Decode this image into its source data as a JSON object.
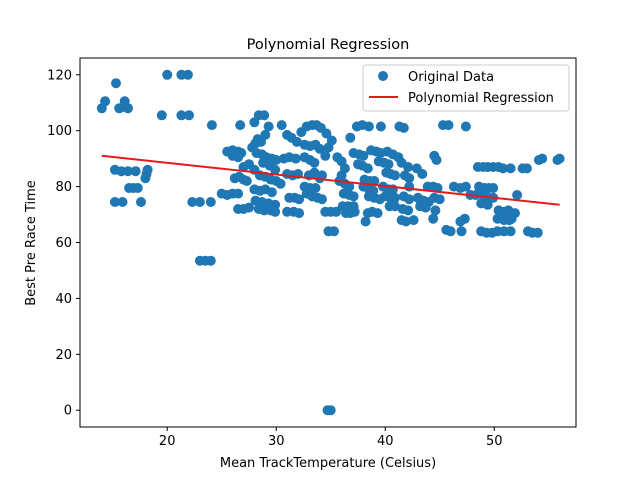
{
  "chart_data": {
    "type": "scatter",
    "title": "Polynomial Regression",
    "xlabel": "Mean TrackTemperature (Celsius)",
    "ylabel": "Best Pre Race Time",
    "xlim": [
      12,
      57.5
    ],
    "ylim": [
      -6,
      126
    ],
    "xticks": [
      20,
      30,
      40,
      50
    ],
    "yticks": [
      0,
      20,
      40,
      60,
      80,
      100,
      120
    ],
    "grid": false,
    "legend_position": "top-right",
    "colors": {
      "points": "#1f77b4",
      "line": "#e41a1c"
    },
    "series": [
      {
        "name": "Original Data",
        "type": "scatter",
        "points": [
          [
            14.0,
            108
          ],
          [
            14.3,
            110.5
          ],
          [
            15.3,
            117
          ],
          [
            15.6,
            108
          ],
          [
            16.0,
            108.5
          ],
          [
            16.1,
            110.5
          ],
          [
            16.4,
            108
          ],
          [
            15.2,
            86
          ],
          [
            15.8,
            85.5
          ],
          [
            16.4,
            85.5
          ],
          [
            17.1,
            85.5
          ],
          [
            16.5,
            79.5
          ],
          [
            16.9,
            79.5
          ],
          [
            17.3,
            79.5
          ],
          [
            15.2,
            74.5
          ],
          [
            15.9,
            74.5
          ],
          [
            17.6,
            74.5
          ],
          [
            18.0,
            83
          ],
          [
            18.1,
            84.5
          ],
          [
            18.2,
            86
          ],
          [
            19.5,
            105.5
          ],
          [
            20.0,
            120
          ],
          [
            21.3,
            120
          ],
          [
            21.9,
            120
          ],
          [
            21.3,
            105.5
          ],
          [
            22.0,
            105.5
          ],
          [
            22.3,
            74.5
          ],
          [
            23.0,
            74.5
          ],
          [
            24.0,
            74.5
          ],
          [
            23.0,
            53.5
          ],
          [
            23.5,
            53.5
          ],
          [
            24.0,
            53.5
          ],
          [
            24.1,
            102
          ],
          [
            25.0,
            77.5
          ],
          [
            25.5,
            77
          ],
          [
            26.0,
            77.5
          ],
          [
            26.5,
            77.5
          ],
          [
            25.5,
            92.5
          ],
          [
            26.0,
            93
          ],
          [
            26.5,
            92.5
          ],
          [
            26.8,
            92
          ],
          [
            26.0,
            91
          ],
          [
            26.5,
            90.5
          ],
          [
            26.2,
            83
          ],
          [
            26.6,
            83.5
          ],
          [
            27.0,
            82.5
          ],
          [
            27.3,
            82
          ],
          [
            26.5,
            72
          ],
          [
            27.0,
            72
          ],
          [
            27.5,
            72.5
          ],
          [
            26.7,
            102
          ],
          [
            27.0,
            87
          ],
          [
            27.5,
            88
          ],
          [
            28.0,
            86
          ],
          [
            27.8,
            94
          ],
          [
            28.1,
            95.5
          ],
          [
            28.3,
            97
          ],
          [
            28.0,
            103
          ],
          [
            28.4,
            105.5
          ],
          [
            28.9,
            105.5
          ],
          [
            29.3,
            101.5
          ],
          [
            29.0,
            98.5
          ],
          [
            28.6,
            96
          ],
          [
            28.2,
            92
          ],
          [
            28.7,
            91.5
          ],
          [
            29.1,
            90.5
          ],
          [
            29.6,
            90
          ],
          [
            30.0,
            89.5
          ],
          [
            28.8,
            88.5
          ],
          [
            29.4,
            87.5
          ],
          [
            29.9,
            86
          ],
          [
            28.5,
            84
          ],
          [
            29.0,
            83.5
          ],
          [
            29.5,
            82.5
          ],
          [
            30.0,
            82
          ],
          [
            30.4,
            81
          ],
          [
            28.0,
            79
          ],
          [
            28.5,
            78.5
          ],
          [
            29.0,
            79
          ],
          [
            29.6,
            78
          ],
          [
            28.1,
            75
          ],
          [
            28.7,
            74.5
          ],
          [
            29.3,
            74
          ],
          [
            29.9,
            73.5
          ],
          [
            28.4,
            72
          ],
          [
            28.9,
            71.5
          ],
          [
            29.5,
            71.5
          ],
          [
            29.9,
            71
          ],
          [
            30.5,
            102
          ],
          [
            31.0,
            98.5
          ],
          [
            31.4,
            97.5
          ],
          [
            31.9,
            96
          ],
          [
            30.7,
            90
          ],
          [
            31.2,
            90.5
          ],
          [
            31.8,
            90
          ],
          [
            31.0,
            84.5
          ],
          [
            31.5,
            84
          ],
          [
            32.0,
            84.5
          ],
          [
            31.2,
            76
          ],
          [
            31.7,
            76
          ],
          [
            32.1,
            75.5
          ],
          [
            31.0,
            71
          ],
          [
            31.6,
            71
          ],
          [
            32.1,
            70.5
          ],
          [
            32.3,
            99.5
          ],
          [
            32.8,
            101.5
          ],
          [
            33.3,
            102
          ],
          [
            33.7,
            102
          ],
          [
            34.1,
            101
          ],
          [
            32.6,
            95
          ],
          [
            33.1,
            94.5
          ],
          [
            33.6,
            95
          ],
          [
            34.0,
            93.5
          ],
          [
            32.6,
            90.5
          ],
          [
            33.1,
            89.5
          ],
          [
            33.5,
            88.5
          ],
          [
            33.0,
            84
          ],
          [
            33.5,
            85
          ],
          [
            34.0,
            83
          ],
          [
            32.6,
            80
          ],
          [
            33.1,
            79.5
          ],
          [
            33.6,
            79.5
          ],
          [
            32.8,
            77.5
          ],
          [
            33.3,
            76.5
          ],
          [
            33.8,
            76
          ],
          [
            34.2,
            75.5
          ],
          [
            34.2,
            84
          ],
          [
            34.5,
            91
          ],
          [
            34.8,
            94
          ],
          [
            35.1,
            96.5
          ],
          [
            34.6,
            99
          ],
          [
            34.5,
            71
          ],
          [
            35.0,
            71
          ],
          [
            35.5,
            71
          ],
          [
            34.8,
            64
          ],
          [
            35.3,
            64
          ],
          [
            34.7,
            0
          ],
          [
            35.0,
            0
          ],
          [
            35.6,
            90.5
          ],
          [
            36.0,
            89
          ],
          [
            36.3,
            86.5
          ],
          [
            36.0,
            84
          ],
          [
            35.8,
            82
          ],
          [
            36.3,
            81
          ],
          [
            36.7,
            80
          ],
          [
            36.2,
            77.5
          ],
          [
            36.7,
            77
          ],
          [
            37.1,
            76.5
          ],
          [
            36.1,
            73
          ],
          [
            36.6,
            73
          ],
          [
            37.1,
            73
          ],
          [
            36.4,
            70.5
          ],
          [
            36.8,
            70.5
          ],
          [
            37.2,
            71
          ],
          [
            36.8,
            97.5
          ],
          [
            37.4,
            101.5
          ],
          [
            37.9,
            102
          ],
          [
            37.1,
            92
          ],
          [
            37.6,
            91.5
          ],
          [
            38.0,
            91
          ],
          [
            37.5,
            88
          ],
          [
            37.9,
            87.5
          ],
          [
            38.4,
            86.5
          ],
          [
            38.1,
            82.5
          ],
          [
            38.6,
            82
          ],
          [
            39.0,
            82
          ],
          [
            38.0,
            80
          ],
          [
            38.5,
            79
          ],
          [
            38.9,
            78.5
          ],
          [
            38.5,
            76.5
          ],
          [
            39.0,
            76
          ],
          [
            39.5,
            75.5
          ],
          [
            38.4,
            70.5
          ],
          [
            38.8,
            71
          ],
          [
            39.3,
            70.5
          ],
          [
            38.2,
            67.5
          ],
          [
            38.5,
            101.5
          ],
          [
            39.6,
            101.5
          ],
          [
            38.7,
            93
          ],
          [
            39.2,
            92.5
          ],
          [
            39.6,
            92
          ],
          [
            39.4,
            89
          ],
          [
            39.9,
            88.5
          ],
          [
            40.3,
            88
          ],
          [
            40.1,
            85
          ],
          [
            40.5,
            84.5
          ],
          [
            40.9,
            84
          ],
          [
            39.8,
            80
          ],
          [
            40.3,
            79
          ],
          [
            40.7,
            79
          ],
          [
            40.0,
            76.5
          ],
          [
            40.5,
            76
          ],
          [
            40.9,
            76
          ],
          [
            40.4,
            73
          ],
          [
            40.9,
            73
          ],
          [
            40.2,
            92.5
          ],
          [
            40.7,
            91.5
          ],
          [
            41.2,
            90.5
          ],
          [
            41.3,
            101.5
          ],
          [
            41.7,
            101
          ],
          [
            41.5,
            88.5
          ],
          [
            41.8,
            84
          ],
          [
            42.2,
            83
          ],
          [
            42.2,
            80
          ],
          [
            41.7,
            76.5
          ],
          [
            42.2,
            75.5
          ],
          [
            41.6,
            72
          ],
          [
            42.1,
            71.5
          ],
          [
            41.5,
            68
          ],
          [
            41.9,
            67.5
          ],
          [
            42.6,
            68
          ],
          [
            42.1,
            87
          ],
          [
            42.9,
            86.5
          ],
          [
            43.4,
            84.5
          ],
          [
            43.0,
            76
          ],
          [
            43.5,
            75
          ],
          [
            44.0,
            74.5
          ],
          [
            43.2,
            73
          ],
          [
            43.7,
            72.5
          ],
          [
            43.9,
            80
          ],
          [
            44.4,
            80
          ],
          [
            44.8,
            79.5
          ],
          [
            44.5,
            76
          ],
          [
            45.0,
            75.5
          ],
          [
            44.6,
            71.5
          ],
          [
            44.4,
            68.5
          ],
          [
            44.5,
            91
          ],
          [
            44.7,
            89.5
          ],
          [
            45.3,
            102
          ],
          [
            45.8,
            102
          ],
          [
            45.6,
            64.5
          ],
          [
            46.0,
            64
          ],
          [
            46.9,
            67.5
          ],
          [
            47.3,
            68.5
          ],
          [
            47.0,
            64
          ],
          [
            47.4,
            101.5
          ],
          [
            46.3,
            80
          ],
          [
            46.9,
            79.5
          ],
          [
            47.4,
            80
          ],
          [
            47.8,
            77
          ],
          [
            48.3,
            77
          ],
          [
            48.5,
            87
          ],
          [
            49.0,
            87
          ],
          [
            49.4,
            87
          ],
          [
            49.9,
            87
          ],
          [
            50.4,
            87
          ],
          [
            50.8,
            86.5
          ],
          [
            48.6,
            80
          ],
          [
            49.1,
            79.5
          ],
          [
            49.5,
            79.5
          ],
          [
            49.9,
            79.5
          ],
          [
            48.8,
            77.5
          ],
          [
            49.3,
            76.5
          ],
          [
            49.9,
            76
          ],
          [
            48.8,
            74
          ],
          [
            49.4,
            73.5
          ],
          [
            48.8,
            64
          ],
          [
            49.3,
            63.5
          ],
          [
            49.8,
            63.5
          ],
          [
            50.4,
            71.5
          ],
          [
            50.9,
            71
          ],
          [
            51.3,
            71.5
          ],
          [
            50.3,
            68.5
          ],
          [
            50.9,
            68
          ],
          [
            51.4,
            68
          ],
          [
            50.3,
            64
          ],
          [
            50.9,
            64
          ],
          [
            51.5,
            64
          ],
          [
            51.6,
            68.5
          ],
          [
            51.9,
            70.5
          ],
          [
            51.5,
            86.5
          ],
          [
            52.1,
            77
          ],
          [
            52.6,
            86.5
          ],
          [
            53.0,
            86.5
          ],
          [
            53.1,
            64
          ],
          [
            53.5,
            63.5
          ],
          [
            54.0,
            63.5
          ],
          [
            54.1,
            89.5
          ],
          [
            54.4,
            90
          ],
          [
            55.8,
            89.5
          ],
          [
            56.0,
            90
          ]
        ]
      },
      {
        "name": "Polynomial Regression",
        "type": "line",
        "x": [
          14,
          56
        ],
        "y": [
          91,
          73.5
        ]
      }
    ]
  }
}
